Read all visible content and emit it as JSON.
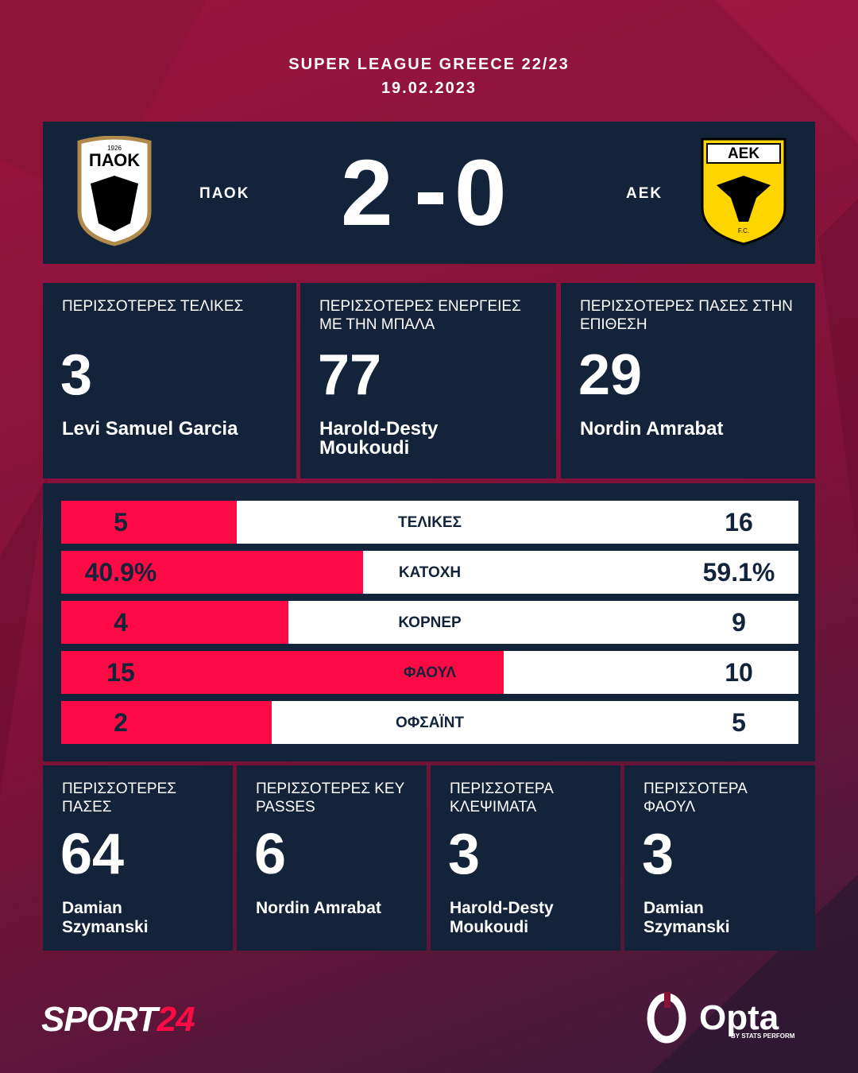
{
  "header": {
    "league": "SUPER LEAGUE GREECE 22/23",
    "date": "19.02.2023"
  },
  "match": {
    "home_team": "ΠΑΟΚ",
    "home_score": 2,
    "away_score": 0,
    "away_team": "ΑΕΚ",
    "home_logo": {
      "name": "ΠΑΟΚ",
      "year": "1926"
    },
    "away_logo": {
      "name": "ΑΕΚ",
      "sub": "F.C."
    }
  },
  "top_stats": [
    {
      "label": "ΠΕΡΙΣΣΟΤΕΡΕΣ ΤΕΛΙΚΕΣ",
      "value": 3,
      "player": "Levi Samuel Garcia"
    },
    {
      "label": "ΠΕΡΙΣΣΟΤΕΡΕΣ ΕΝΕΡΓΕΙΕΣ ΜΕ ΤΗΝ ΜΠΑΛΑ",
      "value": 77,
      "player": "Harold-Desty Moukoudi"
    },
    {
      "label": "ΠΕΡΙΣΣΟΤΕΡΕΣ ΠΑΣΕΣ ΣΤΗΝ ΕΠΙΘΕΣΗ",
      "value": 29,
      "player": "Nordin Amrabat"
    }
  ],
  "comparison": {
    "home_color": "#ff0a45",
    "away_color": "#ffffff",
    "rows": [
      {
        "label": "ΤΕΛΙΚΕΣ",
        "home": 5,
        "away": 16
      },
      {
        "label": "ΚΑΤΟΧΗ",
        "home": 40.9,
        "away": 59.1,
        "home_label": "40.9%",
        "away_label": "59.1%"
      },
      {
        "label": "ΚΟΡΝΕΡ",
        "home": 4,
        "away": 9
      },
      {
        "label": "ΦΑΟΥΛ",
        "home": 15,
        "away": 10
      },
      {
        "label": "ΟΦΣΑΪΝΤ",
        "home": 2,
        "away": 5
      }
    ]
  },
  "bottom_stats": [
    {
      "label": "ΠΕΡΙΣΣΟΤΕΡΕΣ ΠΑΣΕΣ",
      "value": 64,
      "player": "Damian Szymanski"
    },
    {
      "label": "ΠΕΡΙΣΣΟΤΕΡΕΣ KEY PASSES",
      "value": 6,
      "player": "Nordin Amrabat"
    },
    {
      "label": "ΠΕΡΙΣΣΟΤΕΡΑ ΚΛΕΨΙΜΑΤΑ",
      "value": 3,
      "player": "Harold-Desty Moukoudi"
    },
    {
      "label": "ΠΕΡΙΣΣΟΤΕΡΑ ΦΑΟΥΛ",
      "value": 3,
      "player": "Damian Szymanski"
    }
  ],
  "footer": {
    "brand_a": "SPORT",
    "brand_b": "24",
    "opta": "Opta",
    "opta_sub": "BY STATS PERFORM"
  }
}
